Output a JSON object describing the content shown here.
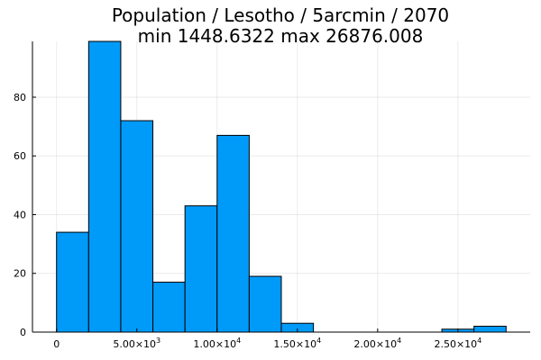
{
  "chart_data": {
    "type": "bar",
    "title": "Population / Lesotho / 5arcmin / 2070",
    "subtitle": "min 1448.6322  max 26876.008",
    "xlabel": "",
    "ylabel": "",
    "bin_width": 2000,
    "bins": [
      {
        "start": 0,
        "end": 2000,
        "count": 34
      },
      {
        "start": 2000,
        "end": 4000,
        "count": 99
      },
      {
        "start": 4000,
        "end": 6000,
        "count": 72
      },
      {
        "start": 6000,
        "end": 8000,
        "count": 17
      },
      {
        "start": 8000,
        "end": 10000,
        "count": 43
      },
      {
        "start": 10000,
        "end": 12000,
        "count": 67
      },
      {
        "start": 12000,
        "end": 14000,
        "count": 19
      },
      {
        "start": 14000,
        "end": 16000,
        "count": 3
      },
      {
        "start": 16000,
        "end": 18000,
        "count": 0
      },
      {
        "start": 18000,
        "end": 20000,
        "count": 0
      },
      {
        "start": 20000,
        "end": 22000,
        "count": 0
      },
      {
        "start": 22000,
        "end": 24000,
        "count": 0
      },
      {
        "start": 24000,
        "end": 26000,
        "count": 1
      },
      {
        "start": 26000,
        "end": 28000,
        "count": 2
      }
    ],
    "xlim": [
      -1500,
      29500
    ],
    "ylim": [
      0,
      99
    ],
    "x_ticks": [
      {
        "value": 0,
        "mantissa": "0",
        "exp": ""
      },
      {
        "value": 5000,
        "mantissa": "5.00×10",
        "exp": "3"
      },
      {
        "value": 10000,
        "mantissa": "1.00×10",
        "exp": "4"
      },
      {
        "value": 15000,
        "mantissa": "1.50×10",
        "exp": "4"
      },
      {
        "value": 20000,
        "mantissa": "2.00×10",
        "exp": "4"
      },
      {
        "value": 25000,
        "mantissa": "2.50×10",
        "exp": "4"
      }
    ],
    "y_ticks": [
      0,
      20,
      40,
      60,
      80
    ],
    "grid": true,
    "colors": {
      "bar": "#009af9",
      "edge": "#000000"
    }
  }
}
